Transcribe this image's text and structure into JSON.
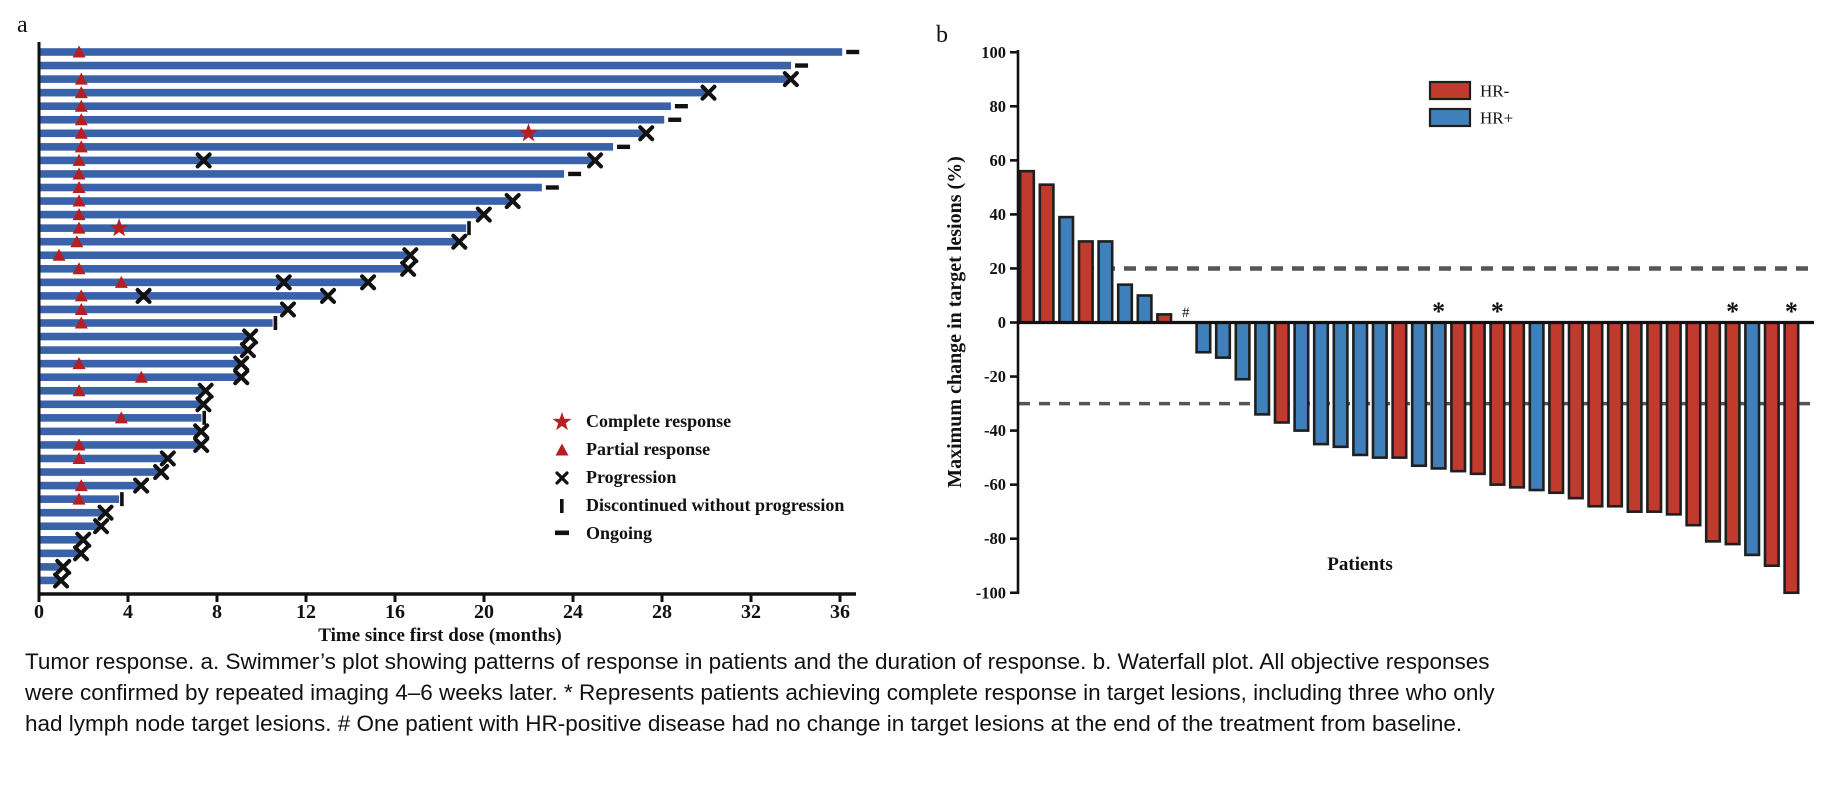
{
  "caption": {
    "text": "Tumor response. a. Swimmer’s plot showing patterns of response in patients and the duration of response. b. Waterfall plot. All objective responses were confirmed by repeated imaging 4–6 weeks later. * Represents patients achieving complete response in target lesions, including three who only had lymph node target lesions. # One patient with HR-positive disease had no change in target lesions at the end of the treatment from baseline."
  },
  "chart_data": [
    {
      "type": "swimmer",
      "title": "a",
      "xlabel": "Time since first dose (months)",
      "x_ticks": [
        0,
        4,
        8,
        12,
        16,
        20,
        24,
        28,
        32,
        36
      ],
      "xlim": [
        0,
        37
      ],
      "colors": {
        "bar": "#3a62a8",
        "response_red": "#b51f24",
        "marker_black": "#111111"
      },
      "legend": [
        {
          "marker": "star",
          "label": "Complete response"
        },
        {
          "marker": "triangle",
          "label": "Partial response"
        },
        {
          "marker": "x",
          "label": "Progression"
        },
        {
          "marker": "bar",
          "label": "Discontinued without progression"
        },
        {
          "marker": "dash",
          "label": "Ongoing"
        }
      ],
      "end_marker_meaning": {
        "ongoing": "Ongoing",
        "prog": "Progression",
        "disc": "Discontinued without progression"
      },
      "patients": [
        {
          "duration": 36.1,
          "end": "ongoing",
          "pr": [
            1.8
          ],
          "cr": [],
          "prog_mid": []
        },
        {
          "duration": 33.8,
          "end": "ongoing",
          "pr": [],
          "cr": [],
          "prog_mid": []
        },
        {
          "duration": 33.7,
          "end": "prog",
          "pr": [
            1.9
          ],
          "cr": [],
          "prog_mid": []
        },
        {
          "duration": 30.0,
          "end": "prog",
          "pr": [
            1.9
          ],
          "cr": [],
          "prog_mid": []
        },
        {
          "duration": 28.4,
          "end": "ongoing",
          "pr": [
            1.9
          ],
          "cr": [],
          "prog_mid": []
        },
        {
          "duration": 28.1,
          "end": "ongoing",
          "pr": [
            1.9
          ],
          "cr": [],
          "prog_mid": []
        },
        {
          "duration": 27.2,
          "end": "prog",
          "pr": [
            1.9
          ],
          "cr": [
            22.0
          ],
          "prog_mid": []
        },
        {
          "duration": 25.8,
          "end": "ongoing",
          "pr": [
            1.9
          ],
          "cr": [],
          "prog_mid": []
        },
        {
          "duration": 24.9,
          "end": "prog",
          "pr": [
            1.8
          ],
          "cr": [],
          "prog_mid": [
            7.4
          ]
        },
        {
          "duration": 23.6,
          "end": "ongoing",
          "pr": [
            1.8
          ],
          "cr": [],
          "prog_mid": []
        },
        {
          "duration": 22.6,
          "end": "ongoing",
          "pr": [
            1.8
          ],
          "cr": [],
          "prog_mid": []
        },
        {
          "duration": 21.2,
          "end": "prog",
          "pr": [
            1.8
          ],
          "cr": [],
          "prog_mid": []
        },
        {
          "duration": 19.9,
          "end": "prog",
          "pr": [
            1.8
          ],
          "cr": [],
          "prog_mid": []
        },
        {
          "duration": 19.2,
          "end": "disc",
          "pr": [
            1.8
          ],
          "cr": [
            3.6
          ],
          "prog_mid": []
        },
        {
          "duration": 18.8,
          "end": "prog",
          "pr": [
            1.7
          ],
          "cr": [],
          "prog_mid": []
        },
        {
          "duration": 16.6,
          "end": "prog",
          "pr": [
            0.9
          ],
          "cr": [],
          "prog_mid": []
        },
        {
          "duration": 16.5,
          "end": "prog",
          "pr": [
            1.8
          ],
          "cr": [],
          "prog_mid": []
        },
        {
          "duration": 14.7,
          "end": "prog",
          "pr": [
            3.7
          ],
          "cr": [],
          "prog_mid": [
            11.0
          ]
        },
        {
          "duration": 12.9,
          "end": "prog",
          "pr": [
            1.9
          ],
          "cr": [],
          "prog_mid": [
            4.7
          ]
        },
        {
          "duration": 11.1,
          "end": "prog",
          "pr": [
            1.9
          ],
          "cr": [],
          "prog_mid": []
        },
        {
          "duration": 10.5,
          "end": "disc",
          "pr": [
            1.9
          ],
          "cr": [],
          "prog_mid": []
        },
        {
          "duration": 9.4,
          "end": "prog",
          "pr": [],
          "cr": [],
          "prog_mid": []
        },
        {
          "duration": 9.3,
          "end": "prog",
          "pr": [],
          "cr": [],
          "prog_mid": []
        },
        {
          "duration": 9.0,
          "end": "prog",
          "pr": [
            1.8
          ],
          "cr": [],
          "prog_mid": []
        },
        {
          "duration": 9.0,
          "end": "prog",
          "pr": [
            4.6
          ],
          "cr": [],
          "prog_mid": []
        },
        {
          "duration": 7.4,
          "end": "prog",
          "pr": [
            1.8
          ],
          "cr": [],
          "prog_mid": []
        },
        {
          "duration": 7.3,
          "end": "prog",
          "pr": [],
          "cr": [],
          "prog_mid": []
        },
        {
          "duration": 7.3,
          "end": "disc",
          "pr": [
            3.7
          ],
          "cr": [],
          "prog_mid": []
        },
        {
          "duration": 7.2,
          "end": "prog",
          "pr": [],
          "cr": [],
          "prog_mid": []
        },
        {
          "duration": 7.2,
          "end": "prog",
          "pr": [
            1.8
          ],
          "cr": [],
          "prog_mid": []
        },
        {
          "duration": 5.7,
          "end": "prog",
          "pr": [
            1.8
          ],
          "cr": [],
          "prog_mid": []
        },
        {
          "duration": 5.4,
          "end": "prog",
          "pr": [],
          "cr": [],
          "prog_mid": []
        },
        {
          "duration": 4.5,
          "end": "prog",
          "pr": [
            1.9
          ],
          "cr": [],
          "prog_mid": []
        },
        {
          "duration": 3.6,
          "end": "disc",
          "pr": [
            1.8
          ],
          "cr": [],
          "prog_mid": []
        },
        {
          "duration": 2.9,
          "end": "prog",
          "pr": [],
          "cr": [],
          "prog_mid": []
        },
        {
          "duration": 2.7,
          "end": "prog",
          "pr": [],
          "cr": [],
          "prog_mid": []
        },
        {
          "duration": 1.9,
          "end": "prog",
          "pr": [],
          "cr": [],
          "prog_mid": []
        },
        {
          "duration": 1.8,
          "end": "prog",
          "pr": [],
          "cr": [],
          "prog_mid": []
        },
        {
          "duration": 1.0,
          "end": "prog",
          "pr": [],
          "cr": [],
          "prog_mid": []
        },
        {
          "duration": 0.9,
          "end": "prog",
          "pr": [],
          "cr": [],
          "prog_mid": []
        }
      ]
    },
    {
      "type": "bar",
      "title": "b",
      "xlabel": "Patients",
      "ylabel": "Maximum change in target lesions (%)",
      "ylim": [
        -100,
        100
      ],
      "y_ticks": [
        100,
        80,
        60,
        40,
        20,
        0,
        -20,
        -40,
        -60,
        -80,
        -100
      ],
      "reference_lines": [
        20,
        -30
      ],
      "grid": false,
      "legend_position": "top-right",
      "legend": [
        {
          "label": "HR-",
          "color": "#c03b2d"
        },
        {
          "label": "HR+",
          "color": "#3f7fba"
        }
      ],
      "colors": {
        "HR-": "#c03b2d",
        "HR+": "#3f7fba",
        "outline": "#1f1f1f",
        "dashed": "#555555"
      },
      "values": [
        56,
        51,
        39,
        30,
        30,
        14,
        10,
        3,
        0,
        -11,
        -13,
        -21,
        -34,
        -37,
        -40,
        -45,
        -46,
        -49,
        -50,
        -50,
        -53,
        -54,
        -55,
        -56,
        -60,
        -61,
        -62,
        -63,
        -65,
        -68,
        -68,
        -70,
        -70,
        -71,
        -75,
        -81,
        -82,
        -86,
        -90,
        -100
      ],
      "groups": [
        "HR-",
        "HR-",
        "HR+",
        "HR-",
        "HR+",
        "HR+",
        "HR+",
        "HR-",
        "HR+",
        "HR+",
        "HR+",
        "HR+",
        "HR+",
        "HR-",
        "HR+",
        "HR+",
        "HR+",
        "HR+",
        "HR+",
        "HR-",
        "HR+",
        "HR+",
        "HR-",
        "HR-",
        "HR-",
        "HR-",
        "HR+",
        "HR-",
        "HR-",
        "HR-",
        "HR-",
        "HR-",
        "HR-",
        "HR-",
        "HR-",
        "HR-",
        "HR-",
        "HR+",
        "HR-",
        "HR-"
      ],
      "annotations": [
        {
          "slot": 9,
          "symbol": "#"
        },
        {
          "slot": 22,
          "symbol": "*"
        },
        {
          "slot": 25,
          "symbol": "*"
        },
        {
          "slot": 37,
          "symbol": "*"
        },
        {
          "slot": 40,
          "symbol": "*"
        }
      ]
    }
  ]
}
